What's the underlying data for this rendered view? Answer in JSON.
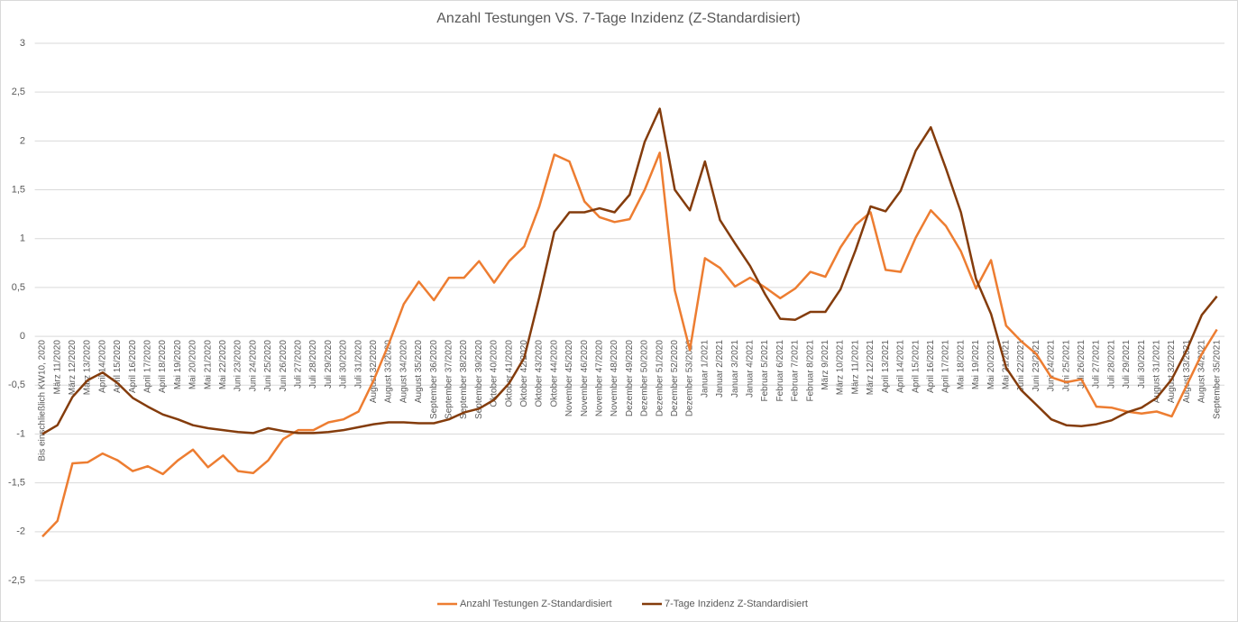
{
  "chart_data": {
    "type": "line",
    "title": "Anzahl Testungen VS. 7-Tage Inzidenz (Z-Standardisiert)",
    "categories": [
      "Bis einschließlich KW10, 2020",
      "März 11/2020",
      "März 12/2020",
      "März 13/2020",
      "April 14/2020",
      "April 15/2020",
      "April 16/2020",
      "April 17/2020",
      "April 18/2020",
      "Mai 19/2020",
      "Mai 20/2020",
      "Mai 21/2020",
      "Mai 22/2020",
      "Juni 23/2020",
      "Juni 24/2020",
      "Juni 25/2020",
      "Juni 26/2020",
      "Juli 27/2020",
      "Juli 28/2020",
      "Juli 29/2020",
      "Juli 30/2020",
      "Juli 31/2020",
      "August 32/2020",
      "August 33/2020",
      "August 34/2020",
      "August 35/2020",
      "September 36/2020",
      "September 37/2020",
      "September 38/2020",
      "September 39/2020",
      "Oktober 40/2020",
      "Oktober 41/2020",
      "Oktober 42/2020",
      "Oktober 43/2020",
      "Oktober 44/2020",
      "November 45/2020",
      "November 46/2020",
      "November 47/2020",
      "November 48/2020",
      "Dezember 49/2020",
      "Dezember 50/2020",
      "Dezember 51/2020",
      "Dezember 52/2020",
      "Dezember 53/2020",
      "Januar 1/2021",
      "Januar 2/2021",
      "Januar 3/2021",
      "Januar 4/2021",
      "Februar 5/2021",
      "Februar 6/2021",
      "Februar 7/2021",
      "Februar 8/2021",
      "März 9/2021",
      "März 10/2021",
      "März 11/2021",
      "März 12/2021",
      "April 13/2021",
      "April 14/2021",
      "April 15/2021",
      "April 16/2021",
      "April 17/2021",
      "Mai 18/2021",
      "Mai 19/2021",
      "Mai 20/2021",
      "Mai 21/2021",
      "Juni 22/2021",
      "Juni 23/2021",
      "Juni 24/2021",
      "Juni 25/2021",
      "Juli 26/2021",
      "Juli 27/2021",
      "Juli 28/2021",
      "Juli 29/2021",
      "Juli 30/2021",
      "August 31/2021",
      "August 32/2021",
      "August 33/2021",
      "August 34/2021",
      "September 35/2021"
    ],
    "series": [
      {
        "name": "Anzahl Testungen Z-Standardisiert",
        "color": "#ed7d31",
        "values": [
          -2.05,
          -1.89,
          -1.3,
          -1.29,
          -1.2,
          -1.27,
          -1.38,
          -1.33,
          -1.41,
          -1.27,
          -1.16,
          -1.34,
          -1.22,
          -1.38,
          -1.4,
          -1.27,
          -1.05,
          -0.96,
          -0.96,
          -0.88,
          -0.85,
          -0.77,
          -0.45,
          -0.08,
          0.33,
          0.56,
          0.37,
          0.6,
          0.6,
          0.77,
          0.55,
          0.77,
          0.92,
          1.33,
          1.86,
          1.79,
          1.38,
          1.22,
          1.17,
          1.2,
          1.5,
          1.88,
          0.47,
          -0.14,
          0.8,
          0.7,
          0.51,
          0.6,
          0.5,
          0.39,
          0.49,
          0.66,
          0.61,
          0.91,
          1.14,
          1.27,
          0.68,
          0.66,
          1.01,
          1.29,
          1.13,
          0.87,
          0.49,
          0.78,
          0.11,
          -0.05,
          -0.18,
          -0.42,
          -0.47,
          -0.44,
          -0.72,
          -0.73,
          -0.77,
          -0.79,
          -0.77,
          -0.82,
          -0.5,
          -0.18,
          0.07
        ]
      },
      {
        "name": "7-Tage Inzidenz Z-Standardisiert",
        "color": "#843c0c",
        "values": [
          -1.0,
          -0.91,
          -0.62,
          -0.45,
          -0.37,
          -0.48,
          -0.63,
          -0.72,
          -0.8,
          -0.85,
          -0.91,
          -0.94,
          -0.96,
          -0.98,
          -0.99,
          -0.94,
          -0.97,
          -0.99,
          -0.99,
          -0.98,
          -0.96,
          -0.93,
          -0.9,
          -0.88,
          -0.88,
          -0.89,
          -0.89,
          -0.85,
          -0.78,
          -0.74,
          -0.65,
          -0.48,
          -0.22,
          0.4,
          1.07,
          1.27,
          1.27,
          1.31,
          1.27,
          1.45,
          1.99,
          2.33,
          1.5,
          1.29,
          1.79,
          1.19,
          0.95,
          0.72,
          0.43,
          0.18,
          0.17,
          0.25,
          0.25,
          0.48,
          0.88,
          1.33,
          1.28,
          1.49,
          1.9,
          2.14,
          1.72,
          1.27,
          0.59,
          0.23,
          -0.32,
          -0.55,
          -0.7,
          -0.85,
          -0.91,
          -0.92,
          -0.9,
          -0.86,
          -0.78,
          -0.73,
          -0.63,
          -0.44,
          -0.14,
          0.22,
          0.41
        ]
      }
    ],
    "ylim": [
      -2.5,
      3
    ],
    "yticks": [
      {
        "value": -2.5,
        "label": "-2,5"
      },
      -2,
      {
        "value": -1.5,
        "label": "-1,5"
      },
      -1,
      {
        "value": -0.5,
        "label": "-0,5"
      },
      0,
      {
        "value": 0.5,
        "label": "0,5"
      },
      1,
      {
        "value": 1.5,
        "label": "1,5"
      },
      2,
      {
        "value": 2.5,
        "label": "2,5"
      },
      3
    ],
    "grid": true,
    "legend": "bottom"
  }
}
